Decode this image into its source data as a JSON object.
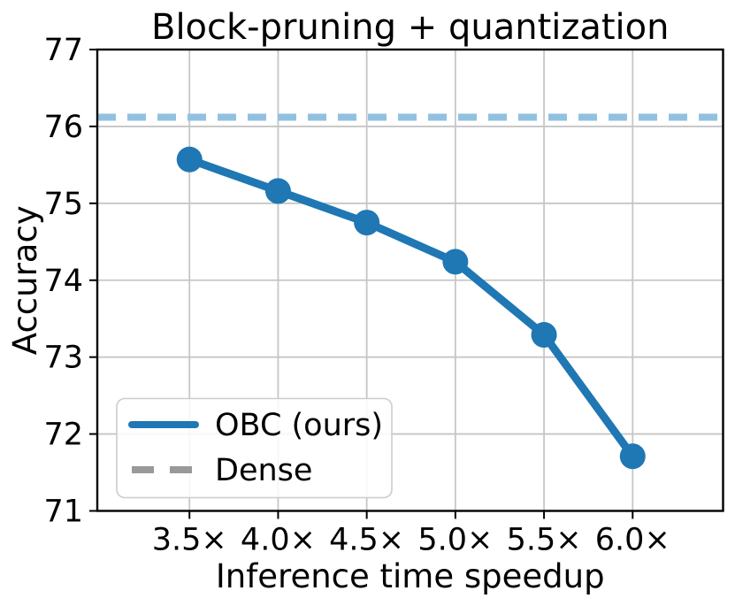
{
  "figure": {
    "background": "#ffffff"
  },
  "chart_data": {
    "type": "line",
    "title": "Block-pruning + quantization",
    "xlabel": "Inference time speedup",
    "ylabel": "Accuracy",
    "x": [
      3.5,
      4.0,
      4.5,
      5.0,
      5.5,
      6.0
    ],
    "x_tick_labels": [
      "3.5×",
      "4.0×",
      "4.5×",
      "5.0×",
      "5.5×",
      "6.0×"
    ],
    "y_ticks": [
      71,
      72,
      73,
      74,
      75,
      76,
      77
    ],
    "y_tick_labels": [
      "71",
      "72",
      "73",
      "74",
      "75",
      "76",
      "77"
    ],
    "xlim": [
      2.98,
      6.51
    ],
    "ylim": [
      71,
      77
    ],
    "grid": true,
    "grid_color": "#c6c6c6",
    "spine_color": "#000000",
    "series": [
      {
        "name": "OBC (ours)",
        "type": "line",
        "marker": "circle",
        "color": "#1f77b4",
        "values": [
          75.57,
          75.16,
          74.75,
          74.24,
          73.29,
          71.71
        ]
      },
      {
        "name": "Dense",
        "type": "hline",
        "style": "dashed",
        "color": "#92c1e0",
        "legend_color": "#999999",
        "value": 76.12
      }
    ],
    "legend": {
      "position": "lower-left",
      "entries": [
        "OBC (ours)",
        "Dense"
      ]
    }
  }
}
